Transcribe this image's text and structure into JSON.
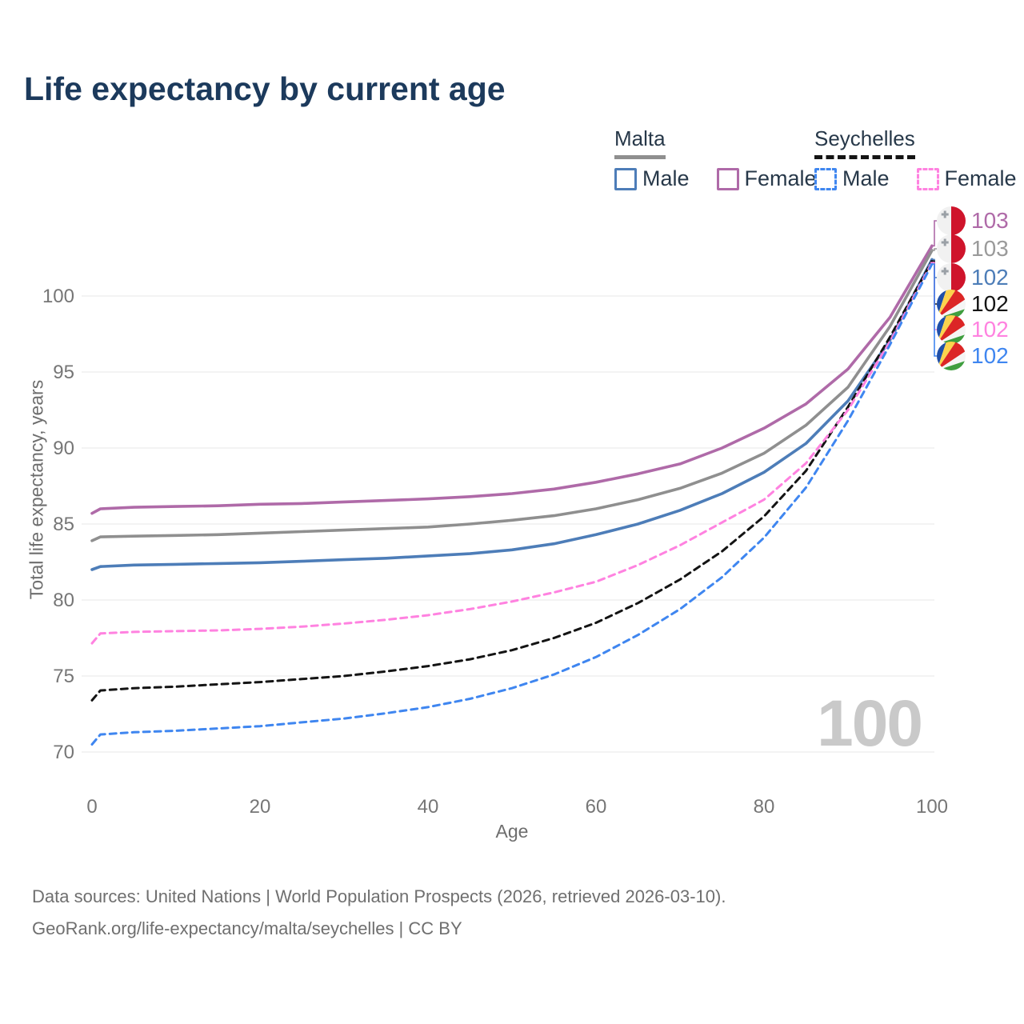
{
  "title": "Life expectancy by current age",
  "legend": {
    "groups": [
      {
        "name": "Malta",
        "line_style": "solid",
        "underline_color": "#8f8f8f",
        "items": [
          {
            "label": "Male",
            "color": "#4d7db8",
            "dashed": false
          },
          {
            "label": "Female",
            "color": "#af6aa8",
            "dashed": false
          }
        ]
      },
      {
        "name": "Seychelles",
        "line_style": "dashed",
        "underline_color": "#141414",
        "items": [
          {
            "label": "Male",
            "color": "#3f86f0",
            "dashed": true
          },
          {
            "label": "Female",
            "color": "#ff82e0",
            "dashed": true
          }
        ]
      }
    ]
  },
  "chart_data": {
    "type": "line",
    "title": "Life expectancy by current age",
    "xlabel": "Age",
    "ylabel": "Total life expectancy, years",
    "xlim": [
      0,
      100
    ],
    "ylim": [
      69,
      105
    ],
    "x_ticks": [
      0,
      20,
      40,
      60,
      80,
      100
    ],
    "y_ticks": [
      70,
      75,
      80,
      85,
      90,
      95,
      100
    ],
    "grid": "horizontal",
    "legend_position": "top-right",
    "watermark": "100",
    "ages": [
      0,
      1,
      5,
      10,
      15,
      20,
      25,
      30,
      35,
      40,
      45,
      50,
      55,
      60,
      65,
      70,
      75,
      80,
      85,
      90,
      95,
      100
    ],
    "series": [
      {
        "name": "Malta Female",
        "country": "Malta",
        "sex": "Female",
        "color": "#af6aa8",
        "dashed": false,
        "end_label": "103",
        "values": [
          85.7,
          86.0,
          86.1,
          86.15,
          86.2,
          86.3,
          86.35,
          86.45,
          86.55,
          86.65,
          86.8,
          87.0,
          87.3,
          87.75,
          88.3,
          88.95,
          90.0,
          91.3,
          92.9,
          95.2,
          98.6,
          103.3
        ]
      },
      {
        "name": "Malta Both sexes",
        "country": "Malta",
        "sex": "Both",
        "color": "#8f8f8f",
        "dashed": false,
        "end_label": "103",
        "values": [
          83.9,
          84.15,
          84.2,
          84.25,
          84.3,
          84.4,
          84.5,
          84.6,
          84.7,
          84.8,
          85.0,
          85.25,
          85.55,
          86.0,
          86.6,
          87.35,
          88.35,
          89.65,
          91.5,
          94.0,
          98.0,
          103.0
        ]
      },
      {
        "name": "Malta Male",
        "country": "Malta",
        "sex": "Male",
        "color": "#4d7db8",
        "dashed": false,
        "end_label": "102",
        "values": [
          82.0,
          82.2,
          82.3,
          82.35,
          82.4,
          82.45,
          82.55,
          82.65,
          82.75,
          82.9,
          83.05,
          83.3,
          83.7,
          84.3,
          85.0,
          85.9,
          87.0,
          88.4,
          90.3,
          93.1,
          97.1,
          102.4
        ]
      },
      {
        "name": "Seychelles Both sexes",
        "country": "Seychelles",
        "sex": "Both",
        "color": "#141414",
        "dashed": true,
        "end_label": "102",
        "values": [
          73.4,
          74.05,
          74.2,
          74.3,
          74.45,
          74.6,
          74.8,
          75.0,
          75.3,
          75.65,
          76.1,
          76.7,
          77.5,
          78.5,
          79.8,
          81.35,
          83.2,
          85.5,
          88.5,
          92.7,
          97.3,
          102.3
        ]
      },
      {
        "name": "Seychelles Female",
        "country": "Seychelles",
        "sex": "Female",
        "color": "#ff82e0",
        "dashed": true,
        "end_label": "102",
        "values": [
          77.15,
          77.8,
          77.9,
          77.95,
          78.0,
          78.1,
          78.25,
          78.45,
          78.7,
          79.0,
          79.4,
          79.9,
          80.5,
          81.2,
          82.3,
          83.6,
          85.1,
          86.6,
          89.0,
          92.5,
          97.0,
          102.2
        ]
      },
      {
        "name": "Seychelles Male",
        "country": "Seychelles",
        "sex": "Male",
        "color": "#3f86f0",
        "dashed": true,
        "end_label": "102",
        "values": [
          70.5,
          71.15,
          71.3,
          71.4,
          71.55,
          71.7,
          71.95,
          72.2,
          72.55,
          72.95,
          73.5,
          74.2,
          75.1,
          76.25,
          77.7,
          79.4,
          81.5,
          84.1,
          87.4,
          91.8,
          96.8,
          102.1
        ]
      }
    ]
  },
  "end_labels": {
    "rows": [
      {
        "flag": "malta",
        "value": "103",
        "color": "#af6aa8",
        "series_index": 0
      },
      {
        "flag": "malta",
        "value": "103",
        "color": "#9a9a9a",
        "series_index": 1
      },
      {
        "flag": "malta",
        "value": "102",
        "color": "#4d7db8",
        "series_index": 2
      },
      {
        "flag": "seychelles",
        "value": "102",
        "color": "#141414",
        "series_index": 3
      },
      {
        "flag": "seychelles",
        "value": "102",
        "color": "#ff82e0",
        "series_index": 4
      },
      {
        "flag": "seychelles",
        "value": "102",
        "color": "#3f86f0",
        "series_index": 5
      }
    ]
  },
  "footer": {
    "line1": "Data sources: United Nations | World Population Prospects (2026, retrieved 2026-03-10).",
    "line2": "GeoRank.org/life-expectancy/malta/seychelles | CC BY"
  }
}
